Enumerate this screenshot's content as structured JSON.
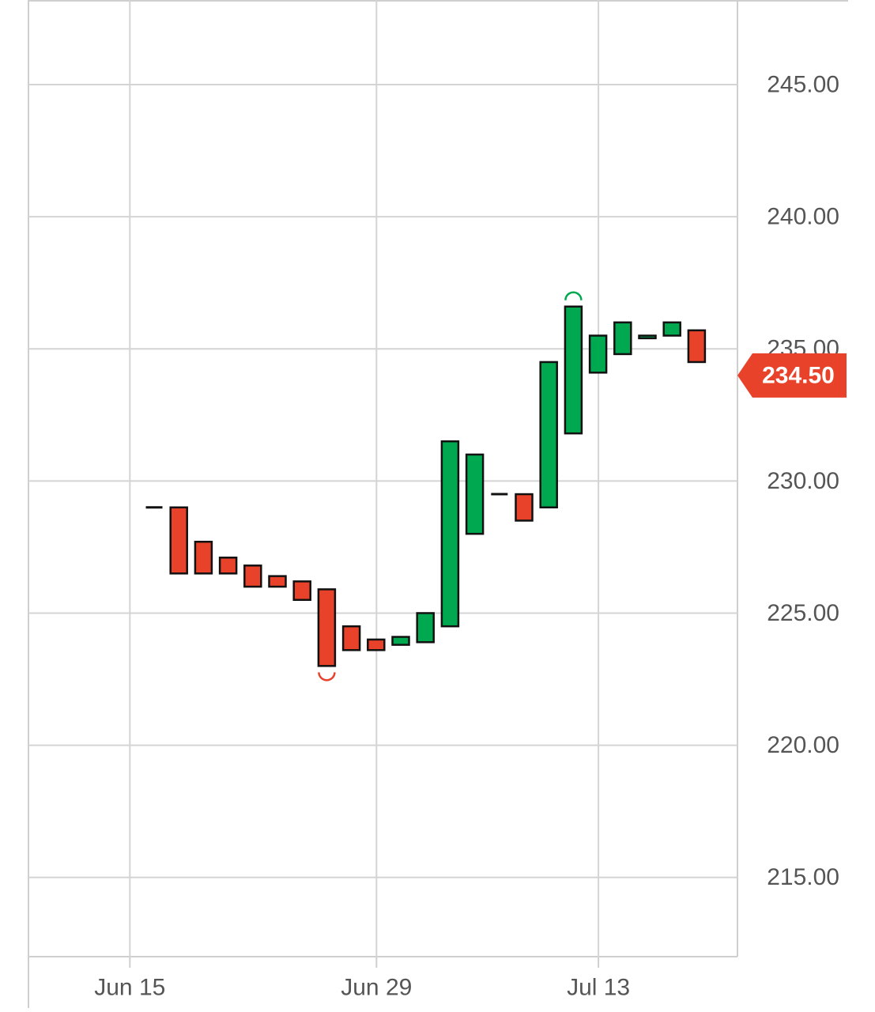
{
  "chart_data": {
    "type": "candlestick",
    "title": "",
    "xlabel": "",
    "ylabel": "",
    "ylim": [
      212.0,
      248.2
    ],
    "y_ticks": [
      "215.00",
      "220.00",
      "225.00",
      "230.00",
      "235.00",
      "240.00",
      "245.00"
    ],
    "x_ticks": [
      {
        "label": "Jun 15",
        "index": -1
      },
      {
        "label": "Jun 29",
        "index": 9
      },
      {
        "label": "Jul 13",
        "index": 18
      }
    ],
    "grid": true,
    "last_price": {
      "label": "234.50",
      "value": 234.5,
      "color": "#e8432a"
    },
    "colors": {
      "up": "#00a94f",
      "down": "#e8432a",
      "flat": "#111111",
      "grid": "#d4d4d4"
    },
    "candles": [
      {
        "open": 229.0,
        "close": 229.0
      },
      {
        "open": 229.0,
        "close": 226.5
      },
      {
        "open": 227.7,
        "close": 226.5
      },
      {
        "open": 227.1,
        "close": 226.5
      },
      {
        "open": 226.8,
        "close": 226.0
      },
      {
        "open": 226.4,
        "close": 226.0
      },
      {
        "open": 226.2,
        "close": 225.5
      },
      {
        "open": 225.9,
        "close": 223.0
      },
      {
        "open": 224.5,
        "close": 223.6
      },
      {
        "open": 224.0,
        "close": 223.6
      },
      {
        "open": 223.8,
        "close": 224.1
      },
      {
        "open": 223.9,
        "close": 225.0
      },
      {
        "open": 224.5,
        "close": 231.5
      },
      {
        "open": 228.0,
        "close": 231.0
      },
      {
        "open": 229.5,
        "close": 229.5
      },
      {
        "open": 229.5,
        "close": 228.5
      },
      {
        "open": 229.0,
        "close": 234.5
      },
      {
        "open": 231.8,
        "close": 236.6
      },
      {
        "open": 234.1,
        "close": 235.5
      },
      {
        "open": 234.8,
        "close": 236.0
      },
      {
        "open": 235.4,
        "close": 235.5
      },
      {
        "open": 235.5,
        "close": 236.0
      },
      {
        "open": 235.7,
        "close": 234.5
      }
    ],
    "markers": [
      {
        "index": 7,
        "type": "low",
        "color": "#e8432a"
      },
      {
        "index": 17,
        "type": "high",
        "color": "#00a94f"
      }
    ]
  }
}
